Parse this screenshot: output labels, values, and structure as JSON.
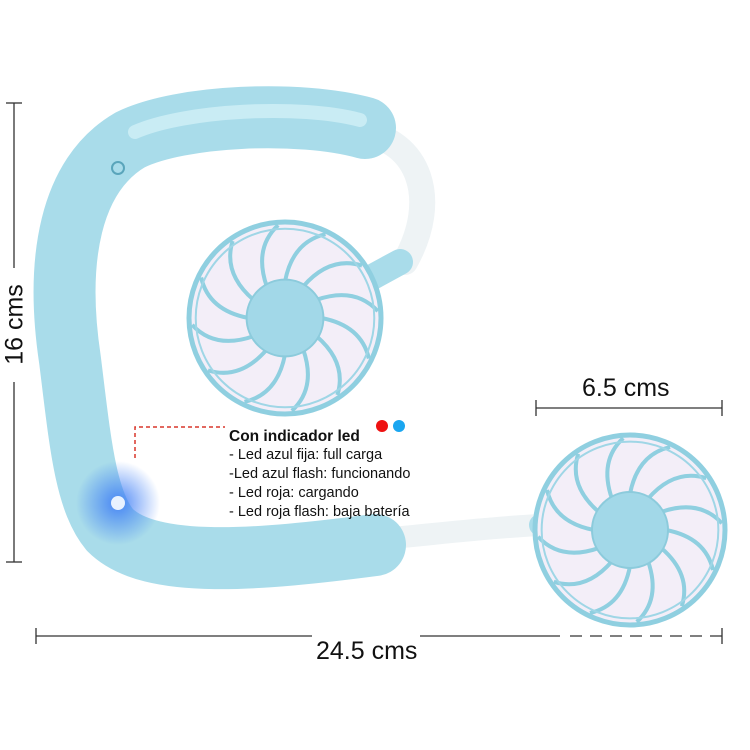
{
  "dimensions": {
    "height": "16 cms",
    "width": "24.5 cms",
    "fan_diameter": "6.5 cms"
  },
  "led_info": {
    "title": "Con indicador led",
    "lines": [
      "- Led azul fija: full carga",
      "-Led azul flash: funcionando",
      "- Led roja: cargando",
      "- Led roja flash: baja batería"
    ]
  },
  "colors": {
    "body": "#a9dcea",
    "led_red": "#ee1111",
    "led_blue": "#1aa6f0",
    "leader": "#d9362b",
    "led_glow": "#3c7cf5"
  }
}
